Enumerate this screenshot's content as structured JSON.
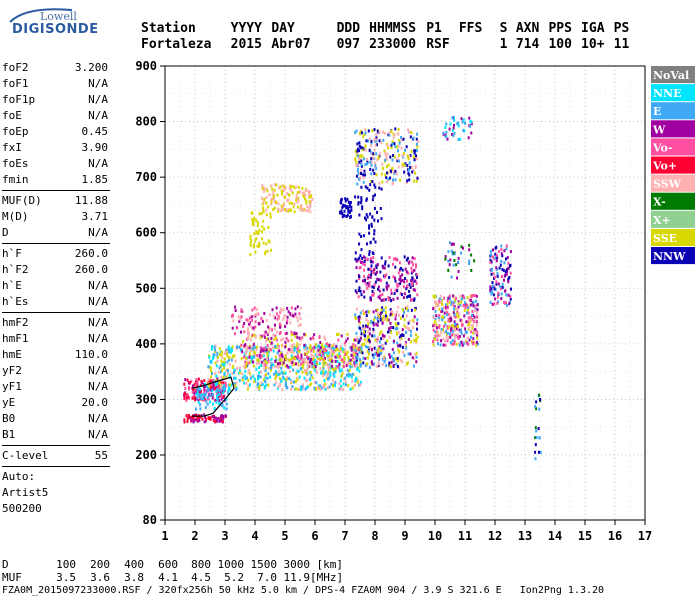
{
  "logo": {
    "line1": "Lowell",
    "line2": "DIGISONDE"
  },
  "header": {
    "labels": [
      "Station",
      "YYYY",
      "DAY",
      "DDD",
      "HHMMSS",
      "P1",
      "FFS",
      "S",
      "AXN",
      "PPS",
      "IGA",
      "PS"
    ],
    "values": [
      "Fortaleza",
      "2015",
      "Abr07",
      "097",
      "233000",
      "RSF",
      "",
      "1",
      "714",
      "100",
      "10+",
      "11"
    ]
  },
  "params": [
    {
      "name": "foF2",
      "value": "3.200"
    },
    {
      "name": "foF1",
      "value": "N/A"
    },
    {
      "name": "foF1p",
      "value": "N/A"
    },
    {
      "name": "foE",
      "value": "N/A"
    },
    {
      "name": "foEp",
      "value": "0.45"
    },
    {
      "name": "fxI",
      "value": "3.90"
    },
    {
      "name": "foEs",
      "value": "N/A"
    },
    {
      "name": "fmin",
      "value": "1.85"
    },
    {
      "sep": true
    },
    {
      "name": "MUF(D)",
      "value": "11.88"
    },
    {
      "name": "M(D)",
      "value": "3.71"
    },
    {
      "name": "D",
      "value": "N/A"
    },
    {
      "sep": true
    },
    {
      "name": "h`F",
      "value": "260.0"
    },
    {
      "name": "h`F2",
      "value": "260.0"
    },
    {
      "name": "h`E",
      "value": "N/A"
    },
    {
      "name": "h`Es",
      "value": "N/A"
    },
    {
      "sep": true
    },
    {
      "name": "hmF2",
      "value": "N/A"
    },
    {
      "name": "hmF1",
      "value": "N/A"
    },
    {
      "name": "hmE",
      "value": "110.0"
    },
    {
      "name": "yF2",
      "value": "N/A"
    },
    {
      "name": "yF1",
      "value": "N/A"
    },
    {
      "name": "yE",
      "value": "20.0"
    },
    {
      "name": "B0",
      "value": "N/A"
    },
    {
      "name": "B1",
      "value": "N/A"
    },
    {
      "sep": true
    },
    {
      "name": "C-level",
      "value": "55"
    },
    {
      "sep": true
    },
    {
      "text": "Auto:"
    },
    {
      "text": "Artist5"
    },
    {
      "text": "500200"
    }
  ],
  "footer": {
    "d_label": "D",
    "d_values": [
      "100",
      "200",
      "400",
      "600",
      "800",
      "1000",
      "1500",
      "3000",
      "[km]"
    ],
    "muf_label": "MUF",
    "muf_values": [
      "3.5",
      "3.6",
      "3.8",
      "4.1",
      "4.5",
      "5.2",
      "7.0",
      "11.9",
      "[MHz]"
    ],
    "info": "FZA0M_2015097233000.RSF / 320fx256h 50 kHz 5.0 km / DPS-4 FZA0M 904 / 3.9 S 321.6 E   Ion2Png 1.3.20"
  },
  "chart_data": {
    "type": "scatter",
    "xlim": [
      1,
      17
    ],
    "ylim": [
      80,
      900
    ],
    "x_ticks": [
      1,
      2,
      3,
      4,
      5,
      6,
      7,
      8,
      9,
      10,
      11,
      12,
      13,
      14,
      15,
      16,
      17
    ],
    "y_ticks": [
      80,
      200,
      300,
      400,
      500,
      600,
      700,
      800,
      900
    ],
    "grid": true,
    "legend_position": "right",
    "legend": [
      {
        "name": "NoVal",
        "color": "#808080"
      },
      {
        "name": "NNE",
        "color": "#00e5ff"
      },
      {
        "name": "E",
        "color": "#3fa9f5"
      },
      {
        "name": "W",
        "color": "#a000a0"
      },
      {
        "name": "Vo-",
        "color": "#ff4fa0"
      },
      {
        "name": "Vo+",
        "color": "#ff0033"
      },
      {
        "name": "SSW",
        "color": "#ffb0b0"
      },
      {
        "name": "X-",
        "color": "#007a00"
      },
      {
        "name": "X+",
        "color": "#90d090"
      },
      {
        "name": "SSE",
        "color": "#d8d800"
      },
      {
        "name": "NNW",
        "color": "#0a00b4"
      }
    ],
    "clusters": [
      {
        "x": [
          1.6,
          3.0
        ],
        "y": [
          300,
          340
        ],
        "colors": [
          "#ff0033",
          "#a000a0",
          "#ff4fa0"
        ],
        "n": 180
      },
      {
        "x": [
          1.6,
          3.0
        ],
        "y": [
          262,
          275
        ],
        "colors": [
          "#ff0033",
          "#a000a0"
        ],
        "n": 70
      },
      {
        "x": [
          2.0,
          3.2
        ],
        "y": [
          285,
          330
        ],
        "colors": [
          "#3fa9f5",
          "#00e5ff"
        ],
        "n": 60
      },
      {
        "x": [
          2.4,
          7.5
        ],
        "y": [
          320,
          400
        ],
        "colors": [
          "#3fa9f5",
          "#d8d800",
          "#ffb0b0",
          "#00e5ff"
        ],
        "n": 700
      },
      {
        "x": [
          3.5,
          7.5
        ],
        "y": [
          360,
          420
        ],
        "colors": [
          "#d8d800",
          "#ffb0b0",
          "#ff4fa0",
          "#a000a0"
        ],
        "n": 300
      },
      {
        "x": [
          3.2,
          5.5
        ],
        "y": [
          420,
          470
        ],
        "colors": [
          "#a000a0",
          "#ff4fa0",
          "#ffb0b0"
        ],
        "n": 120
      },
      {
        "x": [
          4.2,
          5.9
        ],
        "y": [
          640,
          690
        ],
        "colors": [
          "#d8d800",
          "#ffb0b0"
        ],
        "n": 140
      },
      {
        "x": [
          3.8,
          4.5
        ],
        "y": [
          560,
          640
        ],
        "colors": [
          "#d8d800"
        ],
        "n": 50
      },
      {
        "x": [
          6.8,
          7.2
        ],
        "y": [
          630,
          665
        ],
        "colors": [
          "#0a00b4"
        ],
        "n": 40
      },
      {
        "x": [
          7.3,
          9.4
        ],
        "y": [
          690,
          790
        ],
        "colors": [
          "#0a00b4",
          "#d8d800",
          "#3fa9f5",
          "#ffb0b0"
        ],
        "n": 260
      },
      {
        "x": [
          7.3,
          9.4
        ],
        "y": [
          480,
          560
        ],
        "colors": [
          "#0a00b4",
          "#a000a0",
          "#ff4fa0"
        ],
        "n": 220
      },
      {
        "x": [
          7.3,
          9.4
        ],
        "y": [
          360,
          470
        ],
        "colors": [
          "#0a00b4",
          "#d8d800",
          "#3fa9f5",
          "#ffb0b0",
          "#a000a0"
        ],
        "n": 320
      },
      {
        "x": [
          7.3,
          8.2
        ],
        "y": [
          560,
          690
        ],
        "colors": [
          "#0a00b4"
        ],
        "n": 60
      },
      {
        "x": [
          9.9,
          11.4
        ],
        "y": [
          400,
          490
        ],
        "colors": [
          "#ffb0b0",
          "#d8d800",
          "#a000a0",
          "#ff4fa0",
          "#3fa9f5"
        ],
        "n": 320
      },
      {
        "x": [
          10.2,
          11.2
        ],
        "y": [
          770,
          810
        ],
        "colors": [
          "#3fa9f5",
          "#a000a0",
          "#00e5ff"
        ],
        "n": 40
      },
      {
        "x": [
          10.3,
          11.3
        ],
        "y": [
          520,
          590
        ],
        "colors": [
          "#007a00",
          "#a000a0",
          "#3fa9f5"
        ],
        "n": 35
      },
      {
        "x": [
          11.8,
          12.5
        ],
        "y": [
          470,
          580
        ],
        "colors": [
          "#a000a0",
          "#ff4fa0",
          "#3fa9f5",
          "#0a00b4"
        ],
        "n": 110
      },
      {
        "x": [
          13.3,
          13.5
        ],
        "y": [
          180,
          330
        ],
        "colors": [
          "#0a00b4",
          "#007a00",
          "#3fa9f5"
        ],
        "n": 20
      }
    ],
    "traced_trace": [
      [
        1.9,
        270
      ],
      [
        2.3,
        270
      ],
      [
        2.6,
        275
      ],
      [
        3.0,
        300
      ],
      [
        3.3,
        320
      ],
      [
        3.2,
        340
      ],
      [
        2.7,
        332
      ],
      [
        2.3,
        325
      ],
      [
        1.9,
        320
      ]
    ]
  }
}
